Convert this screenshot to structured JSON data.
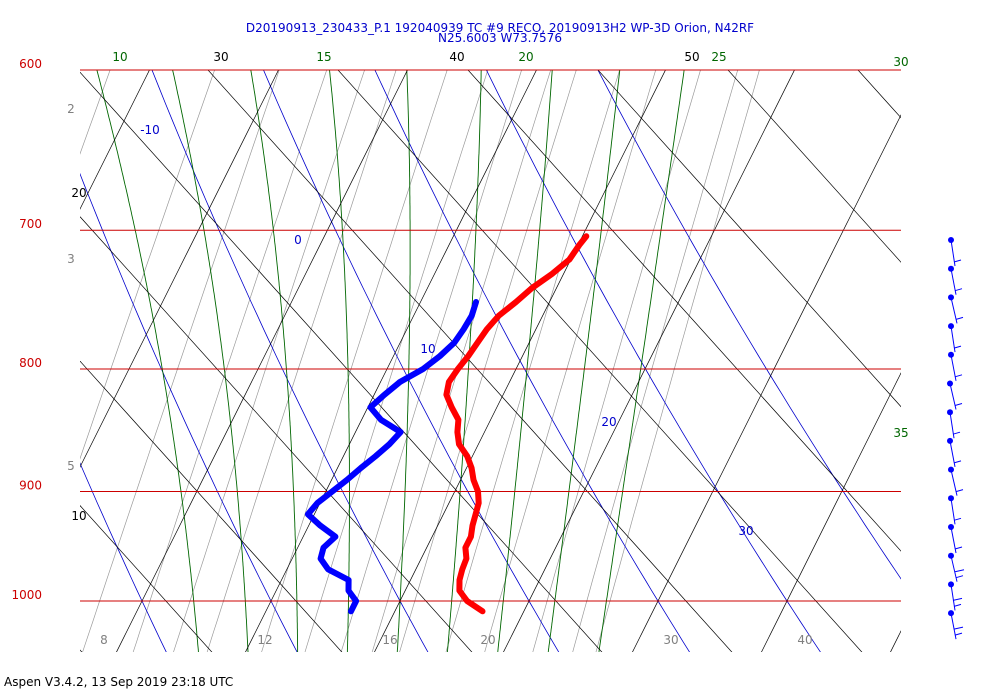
{
  "title_line1": "D20190913_230433_P.1 192040939 TC #9 RECO, 20190913H2 WP-3D Orion, N42RF",
  "title_line2": "N25.6003 W73.7576",
  "footer": "Aspen V3.4.2, 13 Sep 2019  23:18 UTC",
  "chart_data": {
    "type": "line",
    "pressure_levels": [
      600,
      700,
      800,
      900,
      1000
    ],
    "top_axis_labels": [
      "10",
      "30",
      "15",
      "40",
      "20",
      "50",
      "25",
      "30"
    ],
    "isotherm_labels": [
      "20",
      "10"
    ],
    "potential_temperature_labels": [
      "-10",
      "0",
      "10",
      "20",
      "30"
    ],
    "mixing_ratio_left_labels": [
      "2",
      "3",
      "5"
    ],
    "mixing_ratio_bottom_labels": [
      "8",
      "12",
      "16",
      "20",
      "30",
      "40"
    ],
    "moist_adiabat_labels": [
      "30",
      "35"
    ],
    "temperature_series": {
      "color": "#ff0000",
      "pressure": [
        704,
        710,
        720,
        730,
        740,
        750,
        760,
        770,
        780,
        790,
        800,
        810,
        820,
        830,
        840,
        850,
        860,
        870,
        880,
        890,
        900,
        910,
        920,
        930,
        940,
        950,
        960,
        970,
        980,
        990,
        1000,
        1010
      ],
      "temperature": [
        20.3,
        20.1,
        19.9,
        19.1,
        18.1,
        17.4,
        16.6,
        16.2,
        16.0,
        15.8,
        15.5,
        15.3,
        15.6,
        16.5,
        17.5,
        17.9,
        18.5,
        19.6,
        20.4,
        21.0,
        21.8,
        22.3,
        22.5,
        22.7,
        23.0,
        23.0,
        23.5,
        23.6,
        23.8,
        24.2,
        25.2,
        26.8
      ]
    },
    "dewpoint_series": {
      "color": "#0000ff",
      "pressure": [
        750,
        760,
        770,
        780,
        790,
        800,
        810,
        820,
        830,
        840,
        850,
        860,
        870,
        880,
        890,
        900,
        910,
        920,
        930,
        940,
        950,
        960,
        970,
        980,
        990,
        1000,
        1010
      ],
      "dewpoint": [
        14.3,
        14.5,
        14.4,
        14.2,
        13.6,
        12.8,
        11.5,
        10.8,
        10.2,
        11.5,
        13.5,
        13.1,
        12.5,
        11.8,
        11.2,
        10.5,
        9.8,
        9.5,
        10.9,
        12.5,
        12.0,
        12.2,
        13.2,
        15.2,
        15.6,
        16.6,
        16.6
      ]
    },
    "wind_barbs": {
      "color": "#0000ff",
      "count": 14
    },
    "x_range_temperature_at_1000": [
      6,
      42
    ],
    "y_range_pressure": [
      600,
      1050
    ],
    "y_scale": "log",
    "legend": "none"
  }
}
